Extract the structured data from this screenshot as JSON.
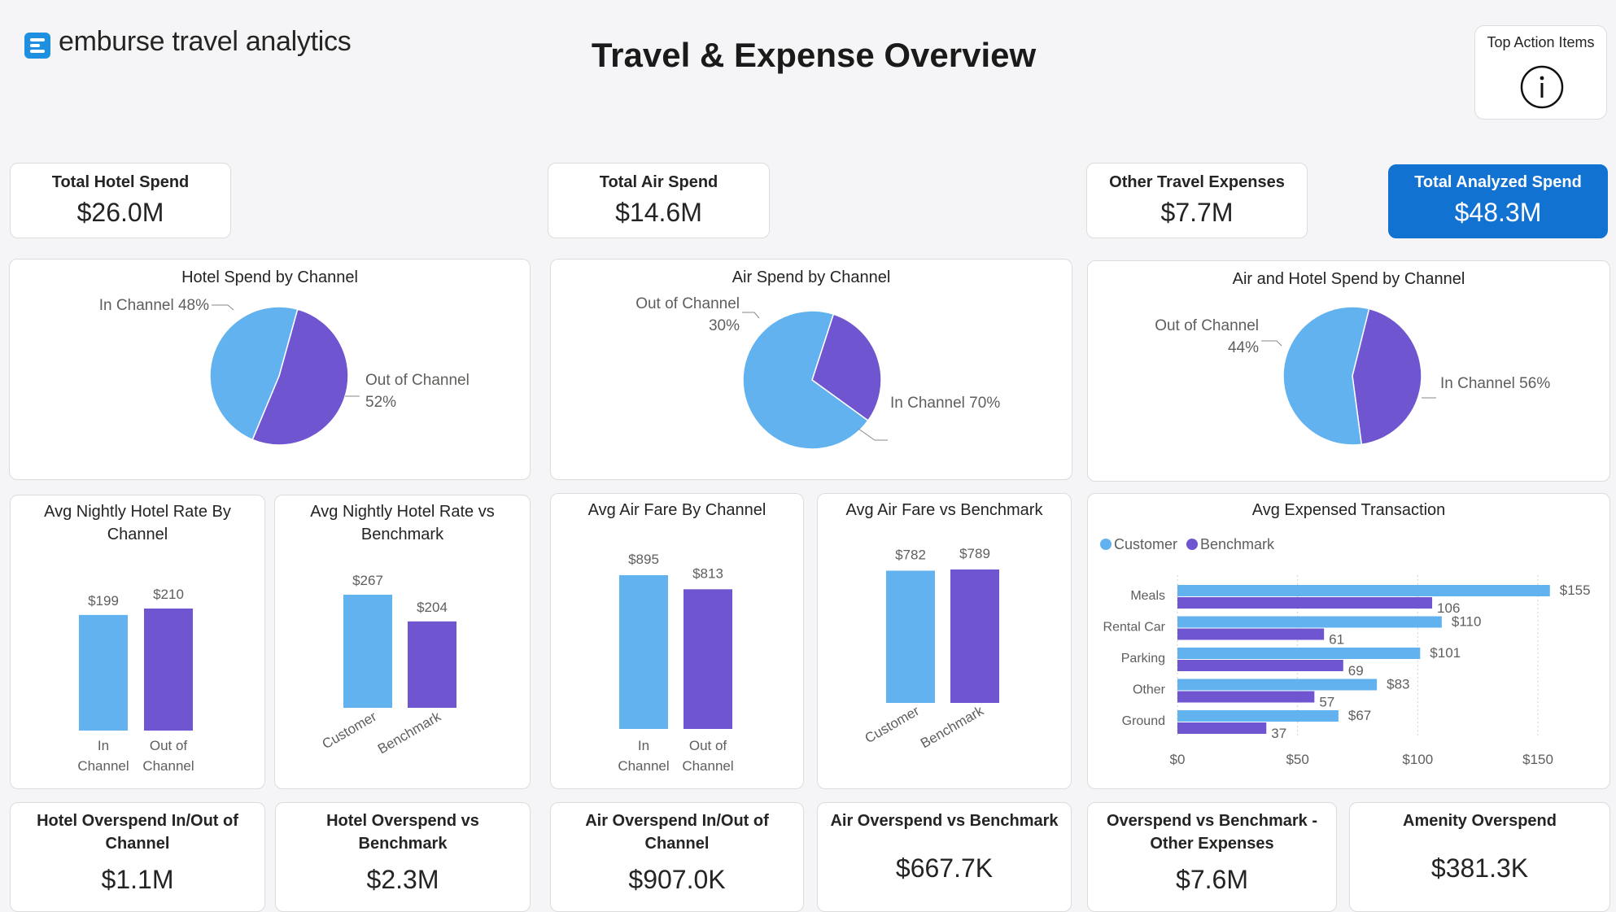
{
  "header": {
    "logo_text": "emburse travel analytics",
    "title": "Travel & Expense Overview",
    "action_label": "Top Action Items"
  },
  "colors": {
    "customer": "#62b2f0",
    "benchmark": "#6f55cf",
    "accent": "#1272d2"
  },
  "kpis": {
    "hotel": {
      "label": "Total Hotel Spend",
      "value": "$26.0M"
    },
    "air": {
      "label": "Total Air Spend",
      "value": "$14.6M"
    },
    "other": {
      "label": "Other Travel Expenses",
      "value": "$7.7M"
    },
    "total": {
      "label": "Total Analyzed Spend",
      "value": "$48.3M"
    }
  },
  "bottom": {
    "hotel_inout": {
      "label": "Hotel Overspend In/Out of Channel",
      "value": "$1.1M"
    },
    "hotel_bench": {
      "label": "Hotel Overspend vs Benchmark",
      "value": "$2.3M"
    },
    "air_inout": {
      "label": "Air Overspend In/Out of Channel",
      "value": "$907.0K"
    },
    "air_bench": {
      "label": "Air Overspend vs Benchmark",
      "value": "$667.7K"
    },
    "other_bench": {
      "label": "Overspend vs Benchmark - Other Expenses",
      "value": "$7.6M"
    },
    "amenity": {
      "label": "Amenity Overspend",
      "value": "$381.3K"
    }
  },
  "chart_data": [
    {
      "id": "hotel_channel",
      "type": "pie",
      "title": "Hotel Spend by Channel",
      "slices": [
        {
          "name": "In Channel",
          "value": 48,
          "label": [
            "In Channel 48%"
          ]
        },
        {
          "name": "Out of Channel",
          "value": 52,
          "label": [
            "Out of Channel",
            "52%"
          ]
        }
      ]
    },
    {
      "id": "air_channel",
      "type": "pie",
      "title": "Air Spend by Channel",
      "slices": [
        {
          "name": "In Channel",
          "value": 70,
          "label": [
            "In Channel 70%"
          ]
        },
        {
          "name": "Out of Channel",
          "value": 30,
          "label": [
            "Out of Channel",
            "30%"
          ]
        }
      ]
    },
    {
      "id": "airhotel_channel",
      "type": "pie",
      "title": "Air and Hotel Spend by Channel",
      "slices": [
        {
          "name": "In Channel",
          "value": 56,
          "label": [
            "In Channel 56%"
          ]
        },
        {
          "name": "Out of Channel",
          "value": 44,
          "label": [
            "Out of Channel",
            "44%"
          ]
        }
      ]
    },
    {
      "id": "hotel_rate_channel",
      "type": "bar",
      "title": "Avg Nightly Hotel Rate By Channel",
      "categories": [
        [
          "In",
          "Channel"
        ],
        [
          "Out of",
          "Channel"
        ]
      ],
      "values": [
        199,
        210
      ],
      "labels": [
        "$199",
        "$210"
      ],
      "ylim": [
        0,
        210
      ]
    },
    {
      "id": "hotel_rate_bench",
      "type": "bar",
      "title": "Avg Nightly Hotel Rate vs Benchmark",
      "categories": [
        "Customer",
        "Benchmark"
      ],
      "values": [
        267,
        204
      ],
      "labels": [
        "$267",
        "$204"
      ],
      "ylim": [
        0,
        267
      ]
    },
    {
      "id": "air_fare_channel",
      "type": "bar",
      "title": "Avg Air Fare By Channel",
      "categories": [
        [
          "In",
          "Channel"
        ],
        [
          "Out of",
          "Channel"
        ]
      ],
      "values": [
        895,
        813
      ],
      "labels": [
        "$895",
        "$813"
      ],
      "ylim": [
        0,
        895
      ]
    },
    {
      "id": "air_fare_bench",
      "type": "bar",
      "title": "Avg Air Fare vs Benchmark",
      "categories": [
        "Customer",
        "Benchmark"
      ],
      "values": [
        782,
        789
      ],
      "labels": [
        "$782",
        "$789"
      ],
      "ylim": [
        0,
        789
      ]
    },
    {
      "id": "avg_expensed",
      "type": "bar",
      "orientation": "horizontal",
      "title": "Avg Expensed Transaction",
      "categories": [
        "Meals",
        "Rental Car",
        "Parking",
        "Other",
        "Ground"
      ],
      "series": [
        {
          "name": "Customer",
          "values": [
            155,
            110,
            101,
            83,
            67
          ],
          "labels": [
            "$155",
            "$110",
            "$101",
            "$83",
            "$67"
          ]
        },
        {
          "name": "Benchmark",
          "values": [
            106,
            61,
            69,
            57,
            37
          ],
          "labels": [
            "106",
            "61",
            "69",
            "57",
            "37"
          ]
        }
      ],
      "xticks": [
        "$0",
        "$50",
        "$100",
        "$150"
      ],
      "xlim": [
        0,
        155
      ],
      "legend": "top-left"
    }
  ]
}
